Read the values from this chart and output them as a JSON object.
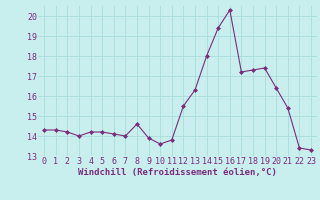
{
  "x": [
    0,
    1,
    2,
    3,
    4,
    5,
    6,
    7,
    8,
    9,
    10,
    11,
    12,
    13,
    14,
    15,
    16,
    17,
    18,
    19,
    20,
    21,
    22,
    23
  ],
  "y": [
    14.3,
    14.3,
    14.2,
    14.0,
    14.2,
    14.2,
    14.1,
    14.0,
    14.6,
    13.9,
    13.6,
    13.8,
    15.5,
    16.3,
    18.0,
    19.4,
    20.3,
    17.2,
    17.3,
    17.4,
    16.4,
    15.4,
    13.4,
    13.3
  ],
  "line_color": "#7b2d7b",
  "marker": "D",
  "marker_size": 2.0,
  "background_color": "#c8eeee",
  "grid_color": "#aadddd",
  "xlabel": "Windchill (Refroidissement éolien,°C)",
  "ylabel": "",
  "ylim": [
    13,
    20.5
  ],
  "xlim": [
    -0.5,
    23.5
  ],
  "yticks": [
    13,
    14,
    15,
    16,
    17,
    18,
    19,
    20
  ],
  "xticks": [
    0,
    1,
    2,
    3,
    4,
    5,
    6,
    7,
    8,
    9,
    10,
    11,
    12,
    13,
    14,
    15,
    16,
    17,
    18,
    19,
    20,
    21,
    22,
    23
  ],
  "tick_fontsize": 6.0,
  "xlabel_fontsize": 6.5
}
